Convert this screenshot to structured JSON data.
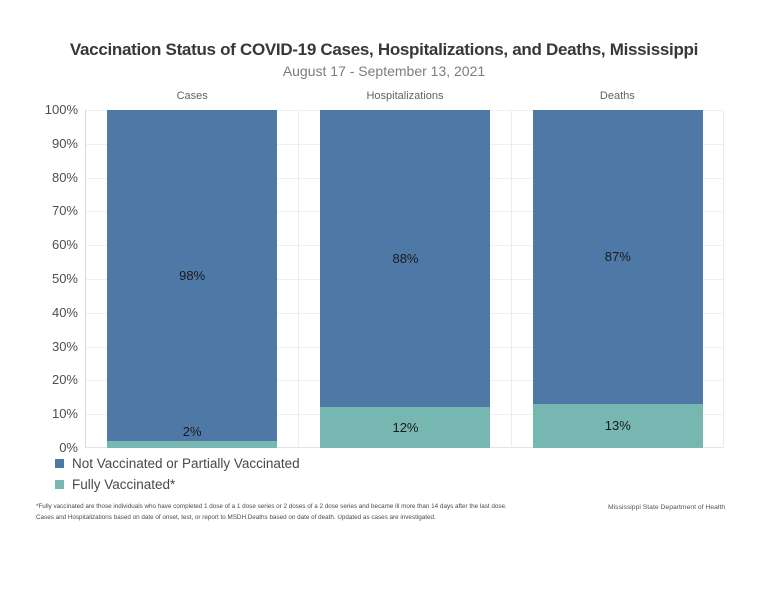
{
  "title": "Vaccination Status of COVID-19 Cases, Hospitalizations, and Deaths, Mississippi",
  "subtitle": "August 17 - September 13, 2021",
  "legend": [
    {
      "label": "Not Vaccinated or Partially Vaccinated",
      "color": "#4e79a7"
    },
    {
      "label": "Fully Vaccinated*",
      "color": "#76b7b2"
    }
  ],
  "footnote": {
    "line1": "*Fully vaccinated are those individuals who have completed 1 dose of a 1 dose series or 2 doses of a 2 dose series and became ill more than 14 days after the last dose.",
    "line2": "Cases and Hospitalizations based on date of onset, test, or report to MSDH.Deaths based on date of death. Updated as cases are investigated."
  },
  "credit": "Mississippi State Department of Health",
  "chart_data": {
    "type": "bar",
    "stacked": true,
    "orientation": "vertical",
    "categories": [
      "Cases",
      "Hospitalizations",
      "Deaths"
    ],
    "series": [
      {
        "name": "Not Vaccinated or Partially Vaccinated",
        "color": "#4e79a7",
        "values": [
          98,
          88,
          87
        ]
      },
      {
        "name": "Fully Vaccinated*",
        "color": "#76b7b2",
        "values": [
          2,
          12,
          13
        ]
      }
    ],
    "value_labels": [
      [
        "98%",
        "2%"
      ],
      [
        "88%",
        "12%"
      ],
      [
        "87%",
        "13%"
      ]
    ],
    "title": "Vaccination Status of COVID-19 Cases, Hospitalizations, and Deaths, Mississippi",
    "subtitle": "August 17 - September 13, 2021",
    "xlabel": "",
    "ylabel": "",
    "ylim": [
      0,
      100
    ],
    "ytick_labels": [
      "100%",
      "90%",
      "80%",
      "70%",
      "60%",
      "50%",
      "40%",
      "30%",
      "20%",
      "10%",
      "0%"
    ],
    "grid": true,
    "legend_position": "bottom-left"
  }
}
